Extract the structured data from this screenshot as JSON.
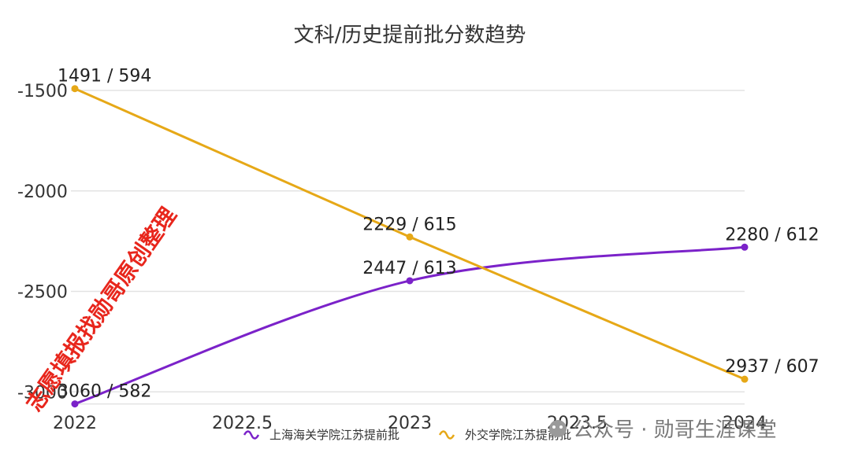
{
  "chart_data": {
    "type": "line",
    "title": "文科/历史提前批分数趋势",
    "x": [
      2022,
      2023,
      2024
    ],
    "x_ticks": [
      "2022",
      "2022.5",
      "2023",
      "2023.5",
      "2024"
    ],
    "y_ticks": [
      "-1500",
      "-2000",
      "-2500",
      "-3000"
    ],
    "ylim": [
      -3060,
      -1500
    ],
    "xlim": [
      2022,
      2024
    ],
    "grid": true,
    "legend_position": "bottom",
    "series": [
      {
        "name": "上海海关学院江苏提前批",
        "color": "#7b22c9",
        "smooth": true,
        "values": [
          -3060,
          -2447,
          -2280
        ],
        "labels": [
          "3060 / 582",
          "2447 / 613",
          "2280 / 612"
        ]
      },
      {
        "name": "外交学院江苏提前批",
        "color": "#e6a817",
        "smooth": false,
        "values": [
          -1491,
          -2229,
          -2937
        ],
        "labels": [
          "1491 / 594",
          "2229 / 615",
          "2937 / 607"
        ]
      }
    ]
  },
  "watermark_text": "志愿填报找勋哥原创整理",
  "footer_text": "公众号 · 勋哥生涯课堂"
}
